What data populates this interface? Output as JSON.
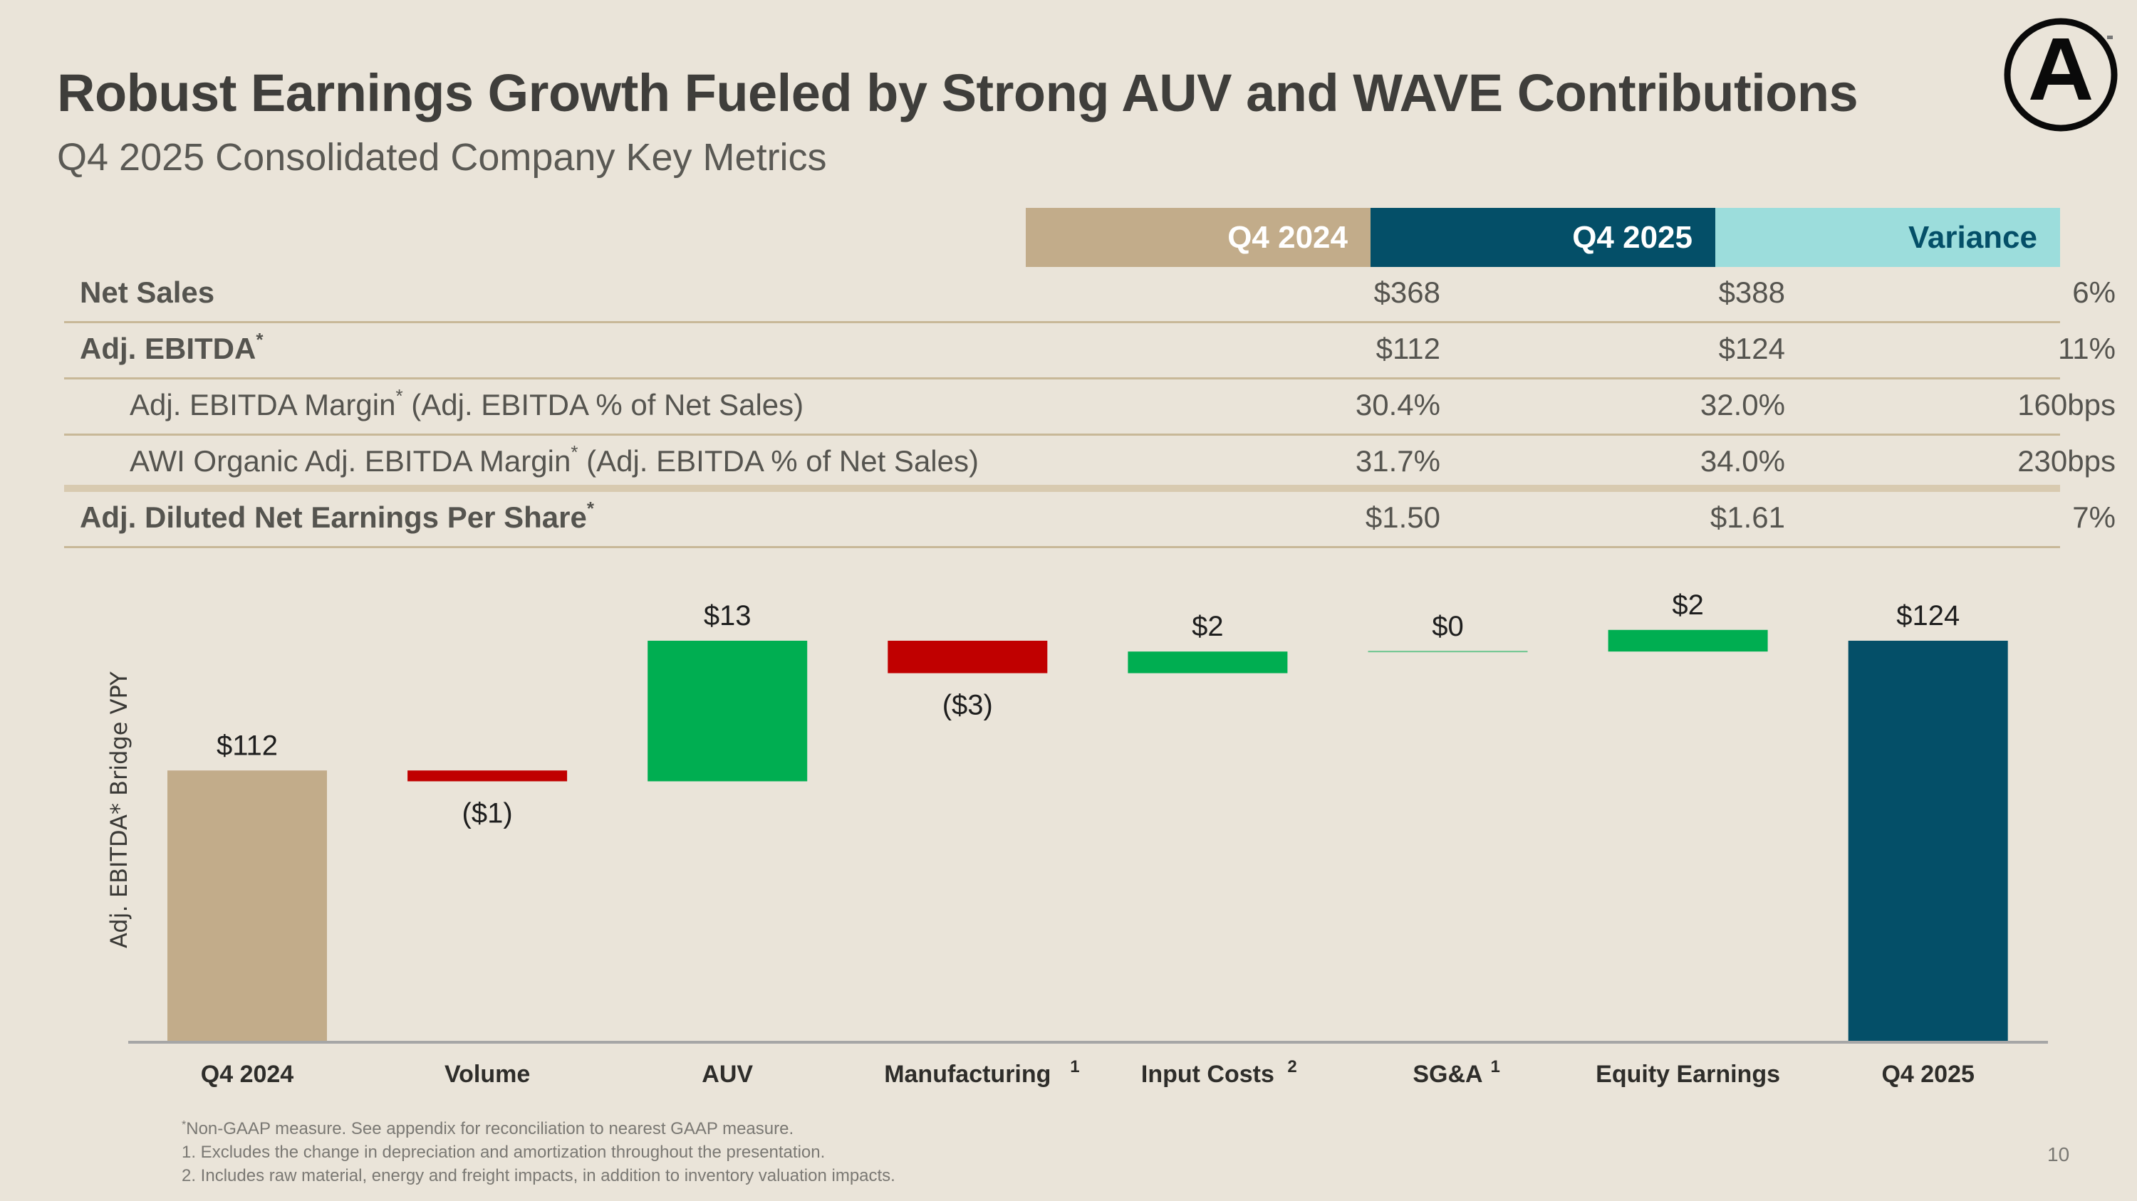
{
  "header": {
    "title": "Robust Earnings Growth Fueled by Strong AUV and WAVE Contributions",
    "subtitle": "Q4 2025 Consolidated Company Key Metrics",
    "logo": "armstrong-a-circle-logo"
  },
  "colors": {
    "background": "#EAE4D9",
    "tan": "#C2AC8A",
    "navy": "#044F68",
    "teal_light": "#9CDDDC",
    "green": "#00AE51",
    "red": "#C00000",
    "rule": "#C8B898"
  },
  "table": {
    "columns": [
      "Q4 2024",
      "Q4 2025",
      "Variance"
    ],
    "rows": [
      {
        "label": "Net Sales",
        "sup": "",
        "suffix": "",
        "values": [
          "$368",
          "$388",
          "6%"
        ],
        "style": "bold"
      },
      {
        "label": "Adj. EBITDA",
        "sup": "*",
        "suffix": "",
        "values": [
          "$112",
          "$124",
          "11%"
        ],
        "style": "bold"
      },
      {
        "label": "Adj. EBITDA Margin",
        "sup": "*",
        "suffix": " (Adj. EBITDA % of Net Sales)",
        "values": [
          "30.4%",
          "32.0%",
          "160bps"
        ],
        "style": "indent"
      },
      {
        "label": "AWI Organic Adj. EBITDA Margin",
        "sup": "*",
        "suffix": " (Adj. EBITDA % of Net Sales)",
        "values": [
          "31.7%",
          "34.0%",
          "230bps"
        ],
        "style": "indent"
      },
      {
        "label": "Adj. Diluted Net Earnings Per Share",
        "sup": "*",
        "suffix": "",
        "values": [
          "$1.50",
          "$1.61",
          "7%"
        ],
        "style": "bold"
      }
    ]
  },
  "chart_data": {
    "type": "bar",
    "subtype": "waterfall",
    "title": "",
    "ylabel": "Adj. EBITDA* Bridge VPY",
    "xlabel": "",
    "ylim": [
      87,
      128
    ],
    "grid": false,
    "legend": "none",
    "categories": [
      "Q4 2024",
      "Volume",
      "AUV",
      "Manufacturing",
      "Input Costs",
      "SG&A",
      "Equity Earnings",
      "Q4 2025"
    ],
    "category_superscripts": [
      "",
      "",
      "",
      "1",
      "2",
      "1",
      "",
      ""
    ],
    "values": [
      112,
      -1,
      13,
      -3,
      2,
      0,
      2,
      124
    ],
    "kinds": [
      "total",
      "delta",
      "delta",
      "delta",
      "delta",
      "delta",
      "delta",
      "total"
    ],
    "data_labels": [
      "$112",
      "($1)",
      "$13",
      "($3)",
      "$2",
      "$0",
      "$2",
      "$124"
    ]
  },
  "footnotes": [
    {
      "marker": "*",
      "text": "Non-GAAP measure. See appendix for reconciliation to nearest GAAP measure."
    },
    {
      "marker": "",
      "text": "1. Excludes the change in depreciation and amortization throughout the presentation."
    },
    {
      "marker": "",
      "text": "2. Includes raw material, energy and freight impacts, in addition to inventory valuation impacts."
    }
  ],
  "page_number": "10"
}
